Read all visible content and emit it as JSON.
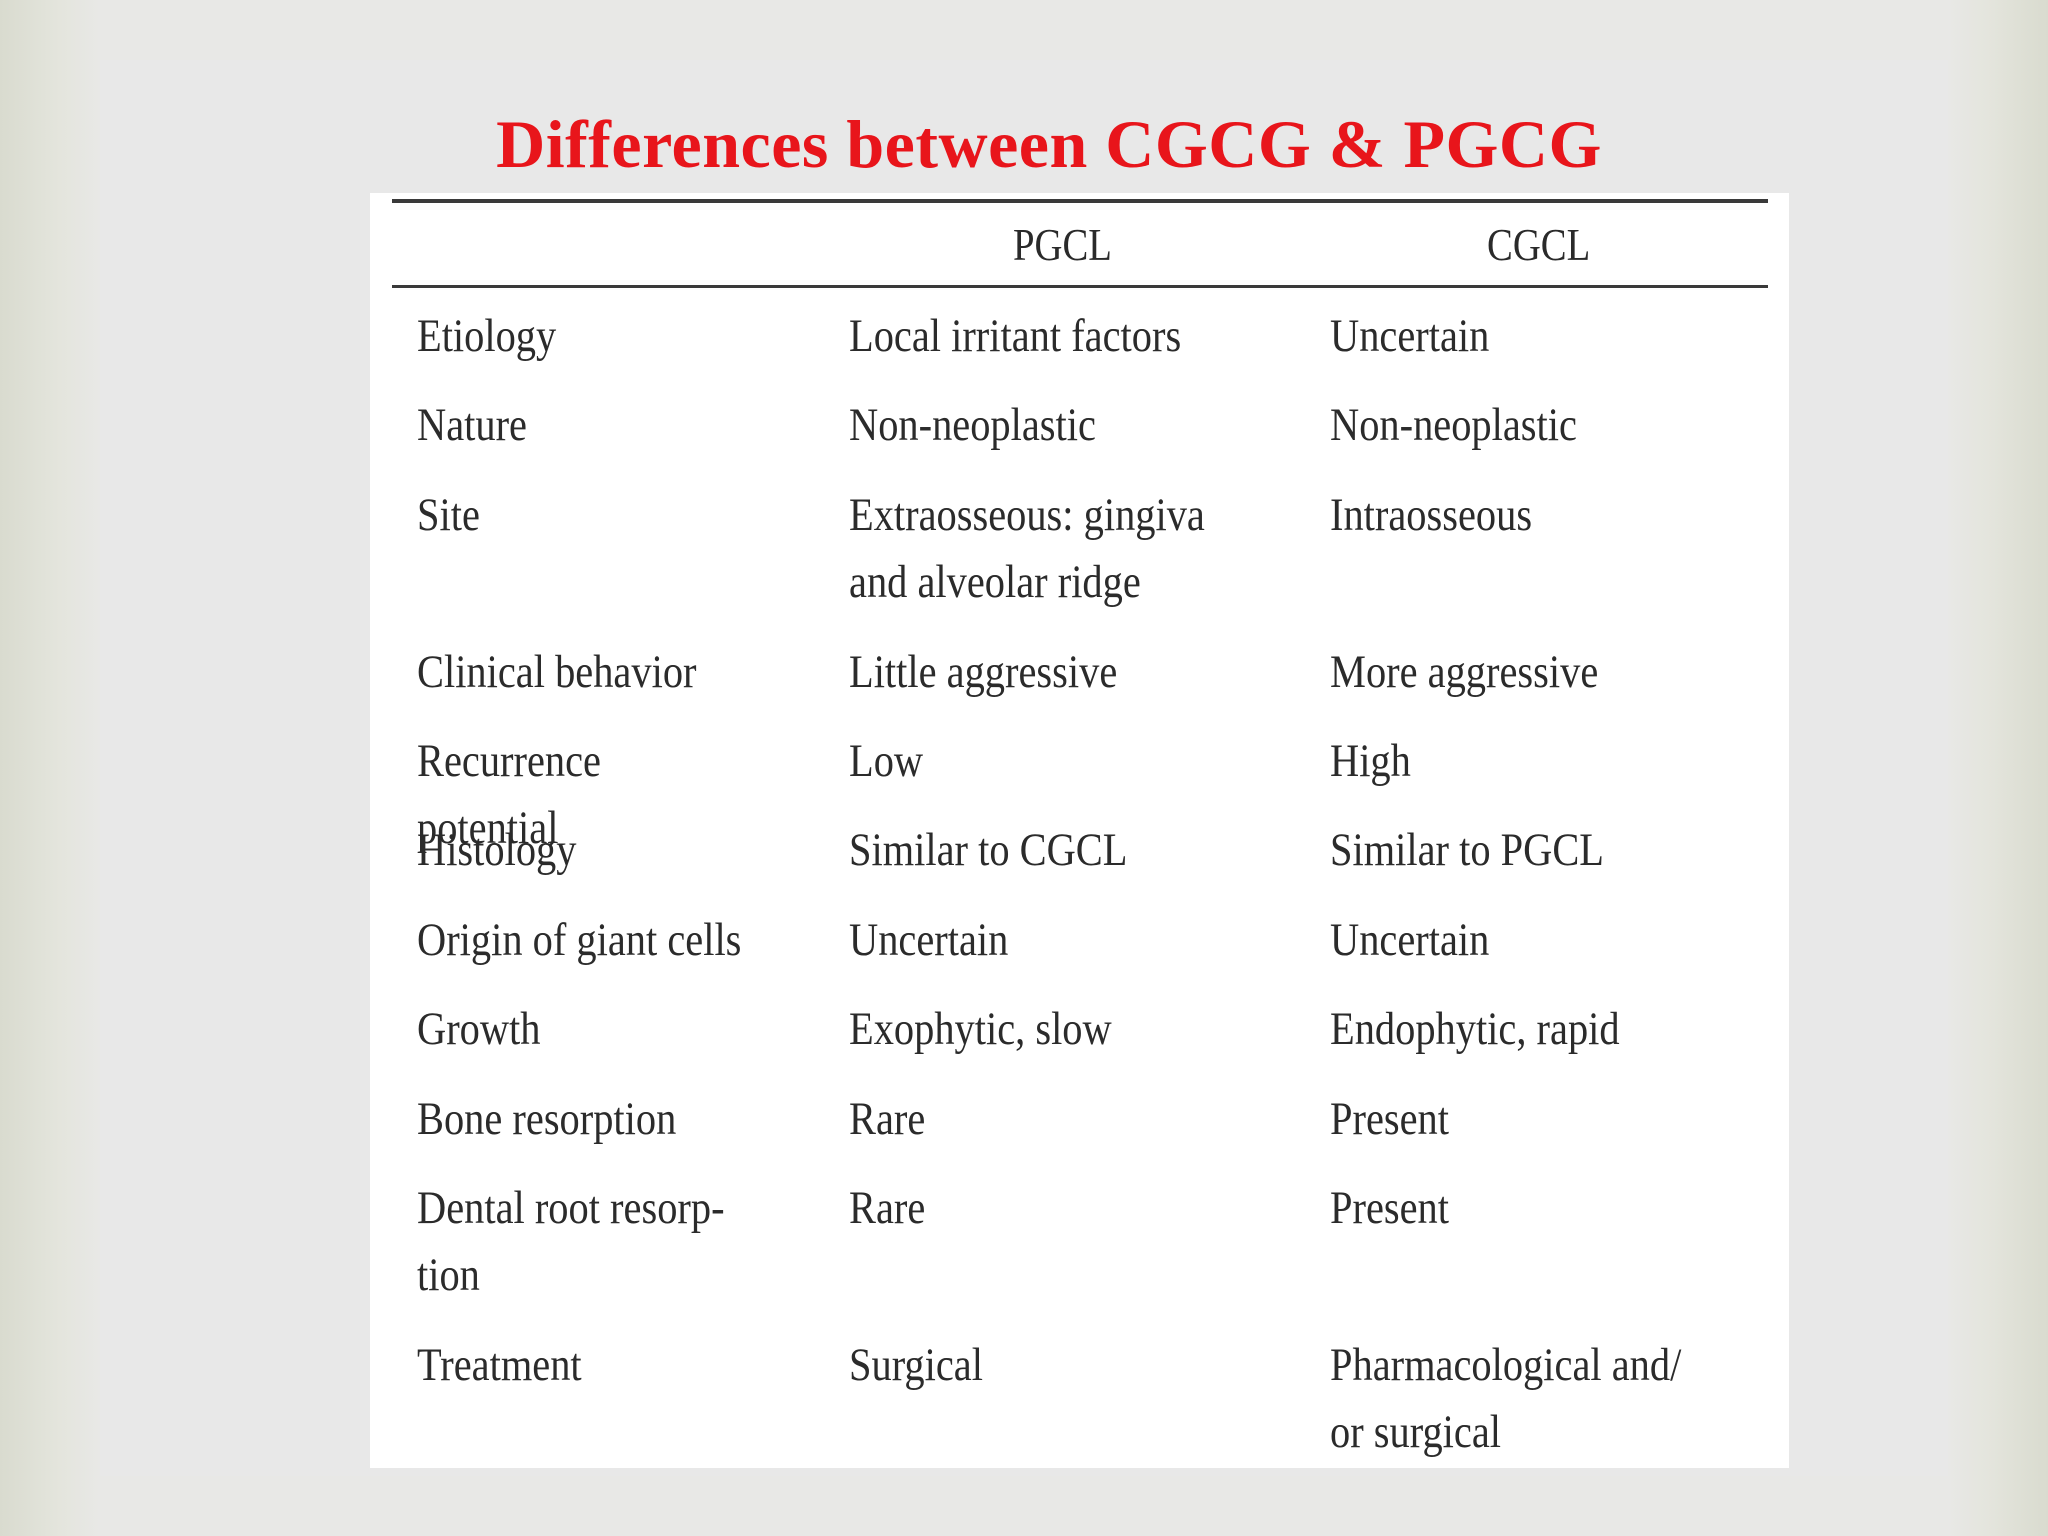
{
  "title": "Differences between CGCG & PGCG",
  "colors": {
    "title": "#e8151b",
    "text": "#2b2b2b",
    "background": "#e8e8e8",
    "panel": "#ffffff"
  },
  "table": {
    "headers": [
      "",
      "PGCL",
      "CGCL"
    ],
    "rows": [
      [
        "Etiology",
        "Local irritant factors",
        "Uncertain"
      ],
      [
        "Nature",
        "Non-neoplastic",
        "Non-neoplastic"
      ],
      [
        "Site",
        "Extraosseous: gingiva\nand alveolar ridge",
        "Intraosseous"
      ],
      [
        "Clinical  behavior",
        "Little aggressive",
        "More aggressive"
      ],
      [
        "Recurrence potential",
        "Low",
        "High"
      ],
      [
        "Histology",
        "Similar to CGCL",
        "Similar to PGCL"
      ],
      [
        "Origin of giant cells",
        "Uncertain",
        "Uncertain"
      ],
      [
        "Growth",
        "Exophytic, slow",
        "Endophytic, rapid"
      ],
      [
        "Bone resorption",
        "Rare",
        "Present"
      ],
      [
        "Dental root resorp-\ntion",
        "Rare",
        "Present"
      ],
      [
        "Treatment",
        "Surgical",
        "Pharmacological and/\nor surgical"
      ]
    ]
  }
}
